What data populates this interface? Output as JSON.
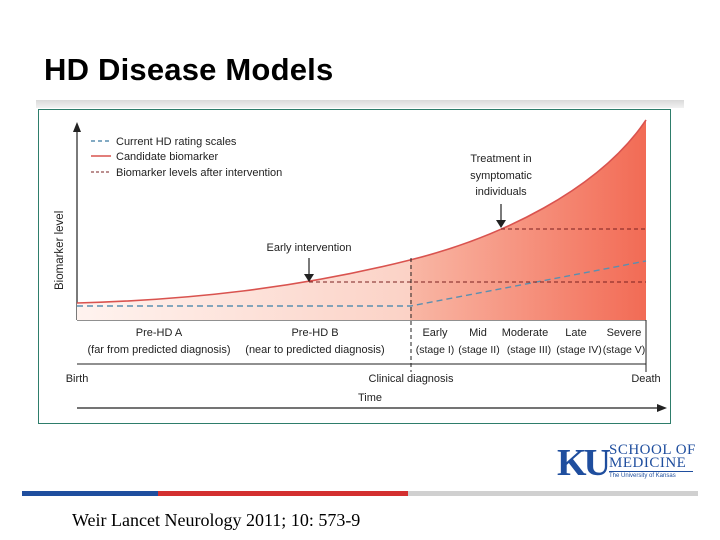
{
  "slide": {
    "title": "HD Disease Models",
    "citation": "Weir Lancet Neurology 2011; 10: 573-9"
  },
  "logo": {
    "mark": "KU",
    "line1": "SCHOOL OF",
    "line2": "MEDICINE",
    "subtitle": "The University of Kansas"
  },
  "diagram": {
    "y_axis_label": "Biomarker level",
    "x_axis_label": "Time",
    "timeline": {
      "start": "Birth",
      "middle": "Clinical diagnosis",
      "end": "Death"
    },
    "legend": [
      {
        "label": "Current HD rating scales",
        "style": "dashed",
        "color": "#5a8fb0"
      },
      {
        "label": "Candidate biomarker",
        "style": "solid",
        "color": "#d9534f"
      },
      {
        "label": "Biomarker levels after intervention",
        "style": "dashed",
        "color": "#7a2020"
      }
    ],
    "annotations": {
      "early_intervention": "Early intervention",
      "treatment": [
        "Treatment in",
        "symptomatic",
        "individuals"
      ]
    },
    "stages": [
      {
        "name": "Pre-HD A",
        "detail": "(far from predicted diagnosis)"
      },
      {
        "name": "Pre-HD B",
        "detail": "(near to predicted diagnosis)"
      },
      {
        "name": "Early",
        "detail": "(stage I)"
      },
      {
        "name": "Mid",
        "detail": "(stage II)"
      },
      {
        "name": "Moderate",
        "detail": "(stage III)"
      },
      {
        "name": "Late",
        "detail": "(stage IV)"
      },
      {
        "name": "Severe",
        "detail": "(stage V)"
      }
    ],
    "colors": {
      "fill_light": "#fde3dc",
      "fill_dark": "#f26b55",
      "curve": "#d9534f",
      "rating": "#5a8fb0",
      "frame": "#2e7d6b"
    }
  }
}
